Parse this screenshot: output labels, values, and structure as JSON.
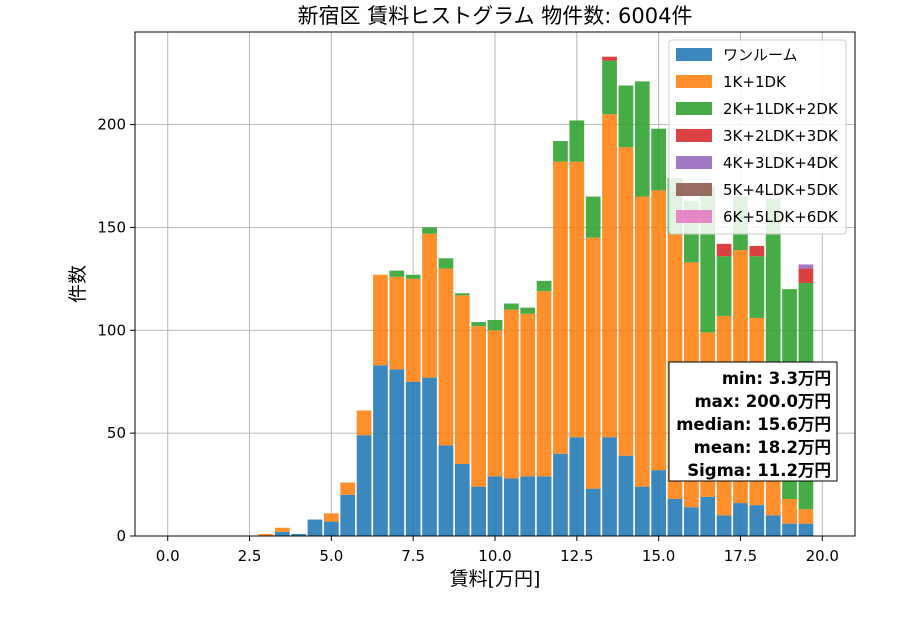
{
  "chart_data": {
    "type": "bar",
    "title": "新宿区 賃料ヒストグラム 物件数: 6004件",
    "xlabel": "賃料[万円]",
    "ylabel": "件数",
    "xlim": [
      -1,
      21
    ],
    "ylim": [
      0,
      245
    ],
    "xticks": [
      "0.0",
      "2.5",
      "5.0",
      "7.5",
      "10.0",
      "12.5",
      "15.0",
      "17.5",
      "20.0"
    ],
    "yticks": [
      "0",
      "50",
      "100",
      "150",
      "200"
    ],
    "grid": true,
    "stacked": true,
    "bin_width": 0.5,
    "legend_position": "top-right",
    "x": [
      3.0,
      3.5,
      4.0,
      4.5,
      5.0,
      5.5,
      6.0,
      6.5,
      7.0,
      7.5,
      8.0,
      8.5,
      9.0,
      9.5,
      10.0,
      10.5,
      11.0,
      11.5,
      12.0,
      12.5,
      13.0,
      13.5,
      14.0,
      14.5,
      15.0,
      15.5,
      16.0,
      16.5,
      17.0,
      17.5,
      18.0,
      18.5,
      19.0,
      19.5
    ],
    "series": [
      {
        "name": "ワンルーム",
        "color": "#1f77b4",
        "values": [
          0,
          2,
          1,
          8,
          7,
          20,
          49,
          83,
          81,
          75,
          77,
          44,
          35,
          24,
          29,
          28,
          29,
          29,
          40,
          48,
          23,
          48,
          39,
          24,
          32,
          18,
          14,
          19,
          10,
          16,
          15,
          10,
          6,
          6
        ]
      },
      {
        "name": "1K+1DK",
        "color": "#ff7f0e",
        "values": [
          1,
          2,
          0,
          0,
          4,
          6,
          12,
          44,
          45,
          50,
          70,
          86,
          82,
          78,
          71,
          82,
          79,
          90,
          142,
          134,
          122,
          157,
          150,
          141,
          136,
          129,
          119,
          80,
          97,
          123,
          91,
          72,
          12,
          7
        ]
      },
      {
        "name": "2K+1LDK+2DK",
        "color": "#2ca02c",
        "values": [
          0,
          0,
          0,
          0,
          0,
          0,
          0,
          0,
          3,
          2,
          3,
          5,
          1,
          2,
          5,
          3,
          3,
          5,
          10,
          20,
          20,
          26,
          30,
          56,
          30,
          27,
          30,
          71,
          29,
          26,
          30,
          82,
          102,
          110
        ]
      },
      {
        "name": "3K+2LDK+3DK",
        "color": "#d62728",
        "values": [
          0,
          0,
          0,
          0,
          0,
          0,
          0,
          0,
          0,
          0,
          0,
          0,
          0,
          0,
          0,
          0,
          0,
          0,
          0,
          0,
          0,
          2,
          0,
          0,
          0,
          0,
          0,
          0,
          6,
          0,
          5,
          0,
          0,
          7
        ]
      },
      {
        "name": "4K+3LDK+4DK",
        "color": "#9467bd",
        "values": [
          0,
          0,
          0,
          0,
          0,
          0,
          0,
          0,
          0,
          0,
          0,
          0,
          0,
          0,
          0,
          0,
          0,
          0,
          0,
          0,
          0,
          0,
          0,
          0,
          0,
          0,
          0,
          0,
          0,
          0,
          0,
          0,
          0,
          2
        ]
      },
      {
        "name": "5K+4LDK+5DK",
        "color": "#8c564b",
        "values": [
          0,
          0,
          0,
          0,
          0,
          0,
          0,
          0,
          0,
          0,
          0,
          0,
          0,
          0,
          0,
          0,
          0,
          0,
          0,
          0,
          0,
          0,
          0,
          0,
          0,
          0,
          0,
          0,
          0,
          0,
          0,
          0,
          0,
          0
        ]
      },
      {
        "name": "6K+5LDK+6DK",
        "color": "#e377c2",
        "values": [
          0,
          0,
          0,
          0,
          0,
          0,
          0,
          0,
          0,
          0,
          0,
          0,
          0,
          0,
          0,
          0,
          0,
          0,
          0,
          0,
          0,
          0,
          0,
          0,
          0,
          0,
          0,
          0,
          0,
          0,
          0,
          0,
          0,
          0
        ]
      }
    ],
    "annotation": [
      "min: 3.3万円",
      "max: 200.0万円",
      "median: 15.6万円",
      "mean: 18.2万円",
      "Sigma: 11.2万円"
    ]
  }
}
